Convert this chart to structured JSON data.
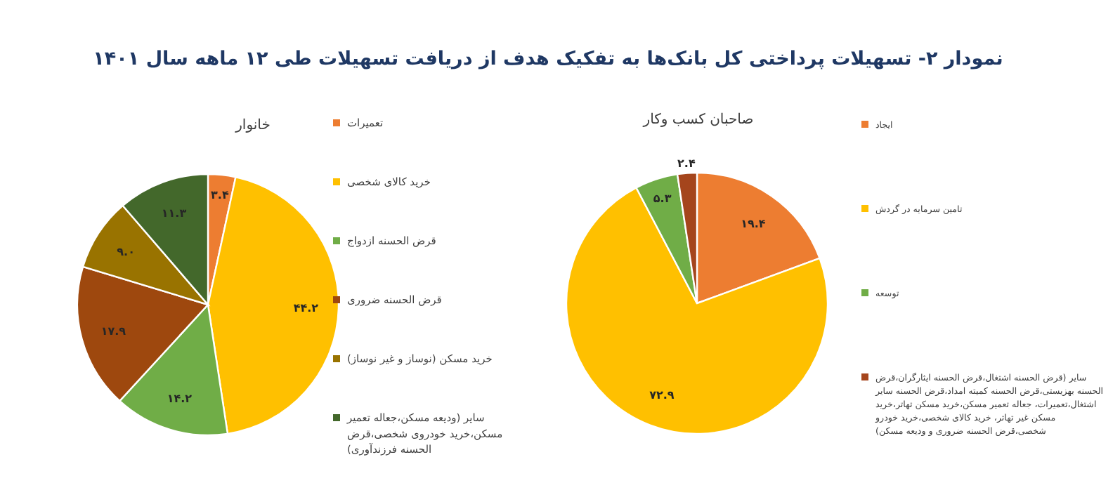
{
  "chart_data": [
    {
      "type": "pie",
      "title": "نمودار ۲- تسهیلات پرداختی کل بانک‌ها به تفکیک هدف از دریافت تسهیلات طی ۱۲ ماهه سال ۱۴۰۱",
      "subtitle": "خانوار",
      "legend": "right",
      "categories": [
        "تعمیرات",
        "خرید کالای شخصی",
        "قرض الحسنه ازدواج",
        "قرض الحسنه ضروری",
        "خرید مسکن (نوساز و غیر نوساز)",
        "سایر (ودیعه مسکن،جعاله تعمیر مسکن،خرید خودروی شخصی،قرض الحسنه فرزندآوری)"
      ],
      "values": [
        3.4,
        44.2,
        14.2,
        17.9,
        9.0,
        11.3
      ],
      "value_labels": [
        "۳.۴",
        "۴۴.۲",
        "۱۴.۲",
        "۱۷.۹",
        "۹.۰",
        "۱۱.۳"
      ],
      "colors": [
        "#ed7d31",
        "#ffc000",
        "#70ad47",
        "#9e480e",
        "#997300",
        "#43682b"
      ]
    },
    {
      "type": "pie",
      "title": "صاحبان کسب وکار",
      "legend": "right",
      "categories": [
        "ایجاد",
        "تامین سرمایه در گردش",
        "توسعه",
        "سایر (قرض الحسنه اشتغال،قرض الحسنه ایثارگران،قرض الحسنه بهزیستی،قرض الحسنه کمیته امداد،قرض الحسنه سایر اشتغال،تعمیرات، جعاله تعمیر مسکن،خرید مسکن تهاتر،خرید مسکن غیر تهاتر، خرید کالای شخصی،خرید خودرو شخصی،قرض الحسنه ضروری و ودیعه مسکن)"
      ],
      "values": [
        19.4,
        72.9,
        5.3,
        2.4
      ],
      "value_labels": [
        "۱۹.۴",
        "۷۲.۹",
        "۵.۳",
        "۲.۴"
      ],
      "colors": [
        "#ed7d31",
        "#ffc000",
        "#70ad47",
        "#a5451c"
      ]
    }
  ]
}
